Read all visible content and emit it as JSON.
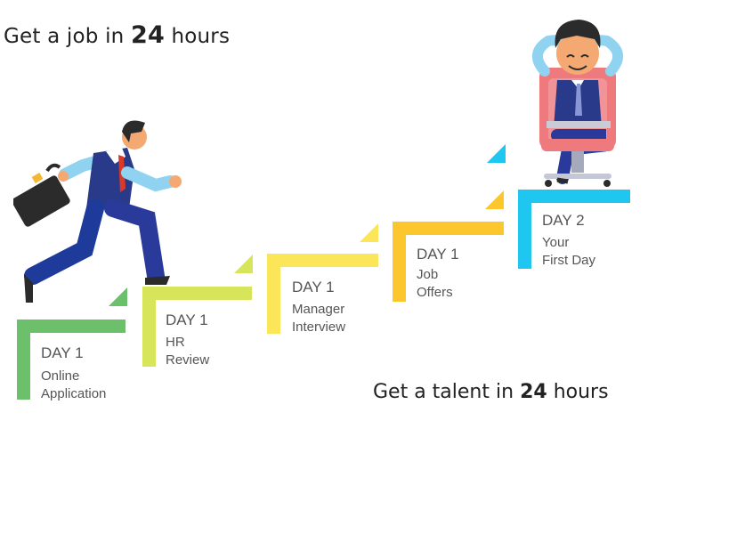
{
  "headline_top": {
    "prefix": "Get a job in",
    "number": "24",
    "suffix": "hours"
  },
  "headline_bottom": {
    "prefix": "Get a talent in",
    "number": "24",
    "suffix": "hours"
  },
  "steps": [
    {
      "day": "DAY 1",
      "desc": "Online\nApplication",
      "color": "#6cbf6b"
    },
    {
      "day": "DAY 1",
      "desc": "HR\nReview",
      "color": "#d7e55a"
    },
    {
      "day": "DAY 1",
      "desc": "Manager\nInterview",
      "color": "#fbe65a"
    },
    {
      "day": "DAY 1",
      "desc": "Job\nOffers",
      "color": "#fcc72c"
    },
    {
      "day": "DAY 2",
      "desc": "Your\nFirst Day",
      "color": "#1fc6ef"
    }
  ],
  "figures": {
    "runner": "running-businessman-illustration",
    "relaxer": "relaxed-businessman-in-chair-illustration"
  }
}
